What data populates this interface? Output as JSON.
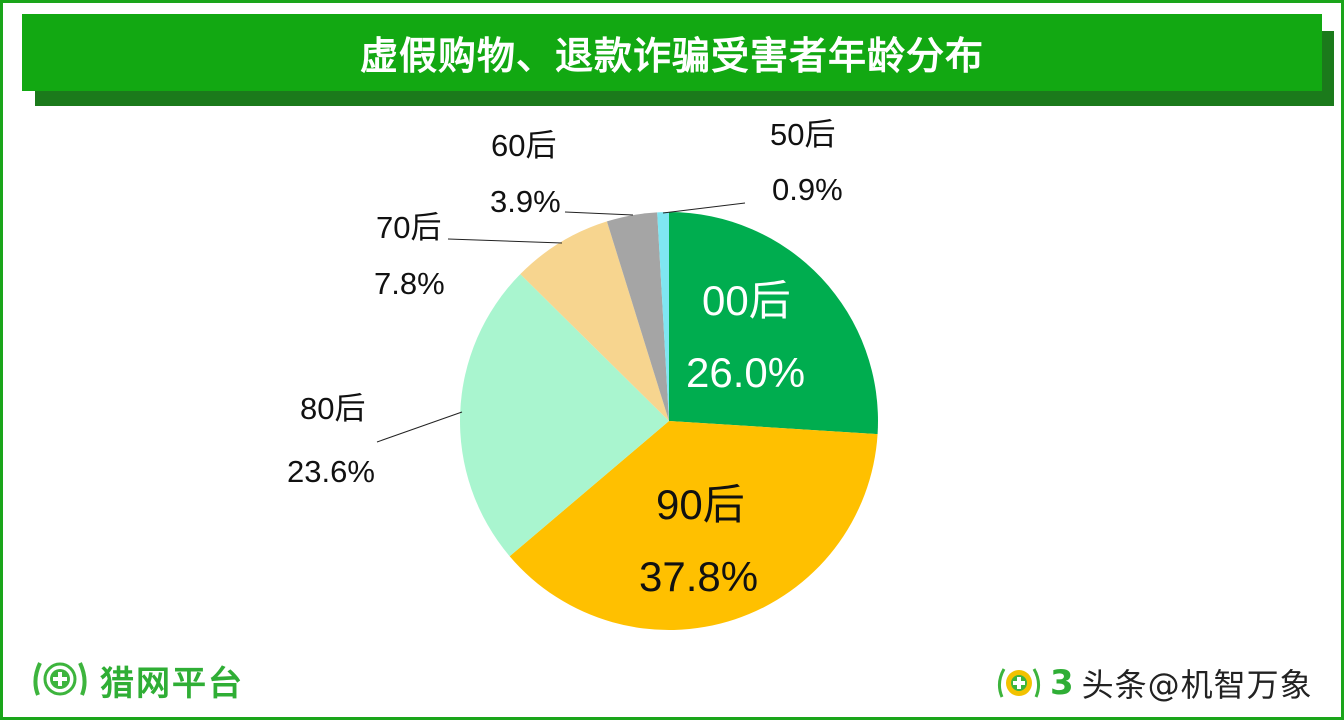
{
  "title": "虚假购物、退款诈骗受害者年龄分布",
  "colors": {
    "frame": "#1aa51a",
    "title_bar": "#12a812",
    "title_shadow": "#1b7a1b"
  },
  "chart_data": {
    "type": "pie",
    "title": "虚假购物、退款诈骗受害者年龄分布",
    "categories": [
      "00后",
      "90后",
      "80后",
      "70后",
      "60后",
      "50后"
    ],
    "values": [
      26.0,
      37.8,
      23.6,
      7.8,
      3.9,
      0.9
    ],
    "unit": "%",
    "colors": [
      "#00ad4f",
      "#ffc000",
      "#a9f5cf",
      "#f7d58f",
      "#a5a5a5",
      "#7fe6f2"
    ],
    "start_angle": "12 o'clock, clockwise",
    "labels": [
      {
        "name": "00后",
        "value": "26.0%"
      },
      {
        "name": "90后",
        "value": "37.8%"
      },
      {
        "name": "80后",
        "value": "23.6%"
      },
      {
        "name": "70后",
        "value": "7.8%"
      },
      {
        "name": "60后",
        "value": "3.9%"
      },
      {
        "name": "50后",
        "value": "0.9%"
      }
    ],
    "legend": "none (data labels)"
  },
  "footer": {
    "left_logo_text": "猎网平台",
    "right_logo_prefix": "3",
    "right_watermark": "头条@机智万象"
  }
}
